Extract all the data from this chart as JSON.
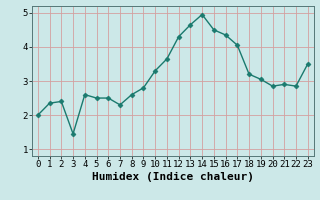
{
  "x": [
    0,
    1,
    2,
    3,
    4,
    5,
    6,
    7,
    8,
    9,
    10,
    11,
    12,
    13,
    14,
    15,
    16,
    17,
    18,
    19,
    20,
    21,
    22,
    23
  ],
  "y": [
    2.0,
    2.35,
    2.4,
    1.45,
    2.6,
    2.5,
    2.5,
    2.3,
    2.6,
    2.8,
    3.3,
    3.65,
    4.3,
    4.65,
    4.95,
    4.5,
    4.35,
    4.05,
    3.2,
    3.05,
    2.85,
    2.9,
    2.85,
    3.5
  ],
  "line_color": "#1a7a6e",
  "marker": "D",
  "marker_size": 2.5,
  "linewidth": 1.0,
  "xlabel": "Humidex (Indice chaleur)",
  "xlabel_fontsize": 8,
  "xlim": [
    -0.5,
    23.5
  ],
  "ylim": [
    0.8,
    5.2
  ],
  "yticks": [
    1,
    2,
    3,
    4,
    5
  ],
  "xticks": [
    0,
    1,
    2,
    3,
    4,
    5,
    6,
    7,
    8,
    9,
    10,
    11,
    12,
    13,
    14,
    15,
    16,
    17,
    18,
    19,
    20,
    21,
    22,
    23
  ],
  "grid_color": "#d4a0a0",
  "bg_color": "#cce8e8",
  "tick_fontsize": 6.5,
  "xlabel_bold": true
}
